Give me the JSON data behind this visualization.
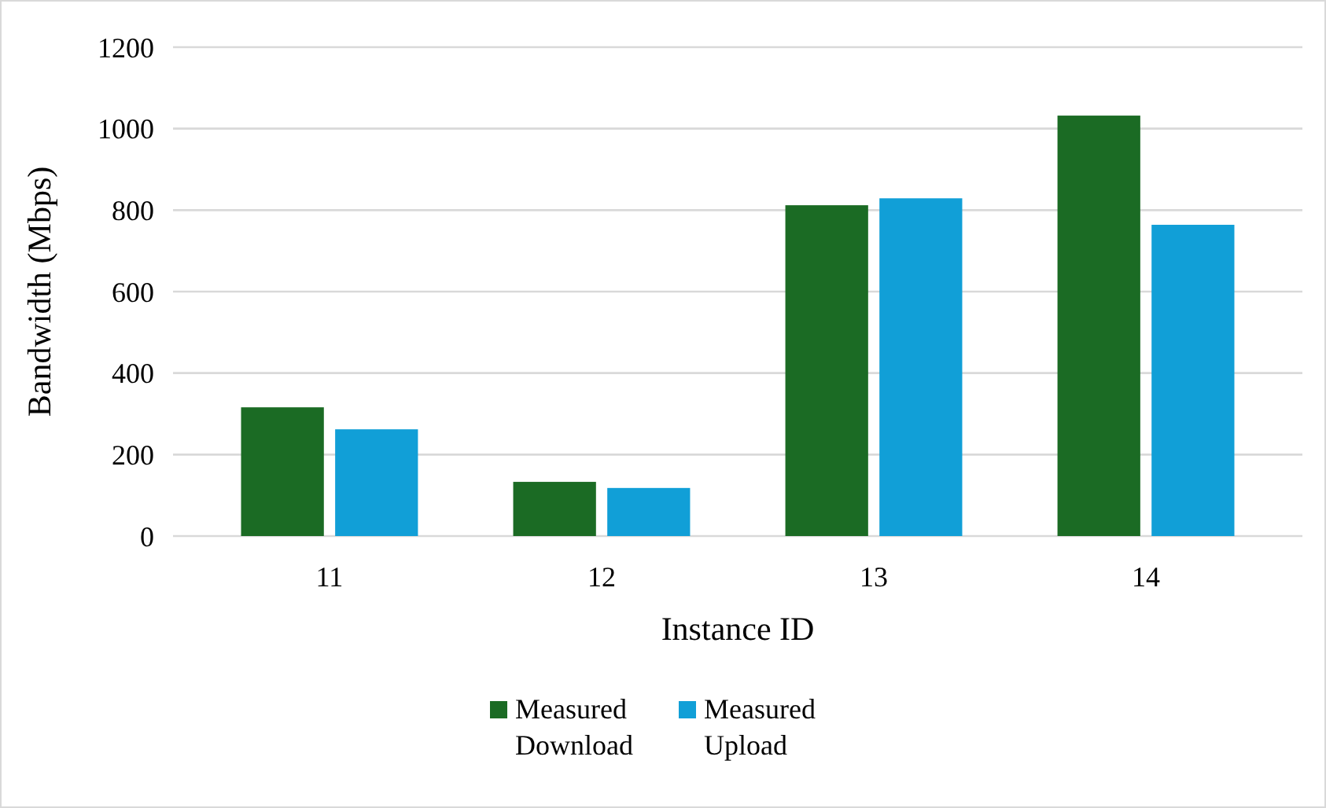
{
  "chart_data": {
    "type": "bar",
    "xlabel": "Instance ID",
    "ylabel": "Bandwidth (Mbps)",
    "categories": [
      "11",
      "12",
      "13",
      "14"
    ],
    "series": [
      {
        "name": "Measured Download",
        "color": "#1b6b24",
        "values": [
          316,
          133,
          812,
          1032
        ]
      },
      {
        "name": "Measured Upload",
        "color": "#119fd7",
        "values": [
          262,
          118,
          829,
          764
        ]
      }
    ],
    "ylim": [
      0,
      1200
    ],
    "yticks": [
      0,
      200,
      400,
      600,
      800,
      1000,
      1200
    ],
    "grid": "y",
    "legend": "bottom"
  }
}
